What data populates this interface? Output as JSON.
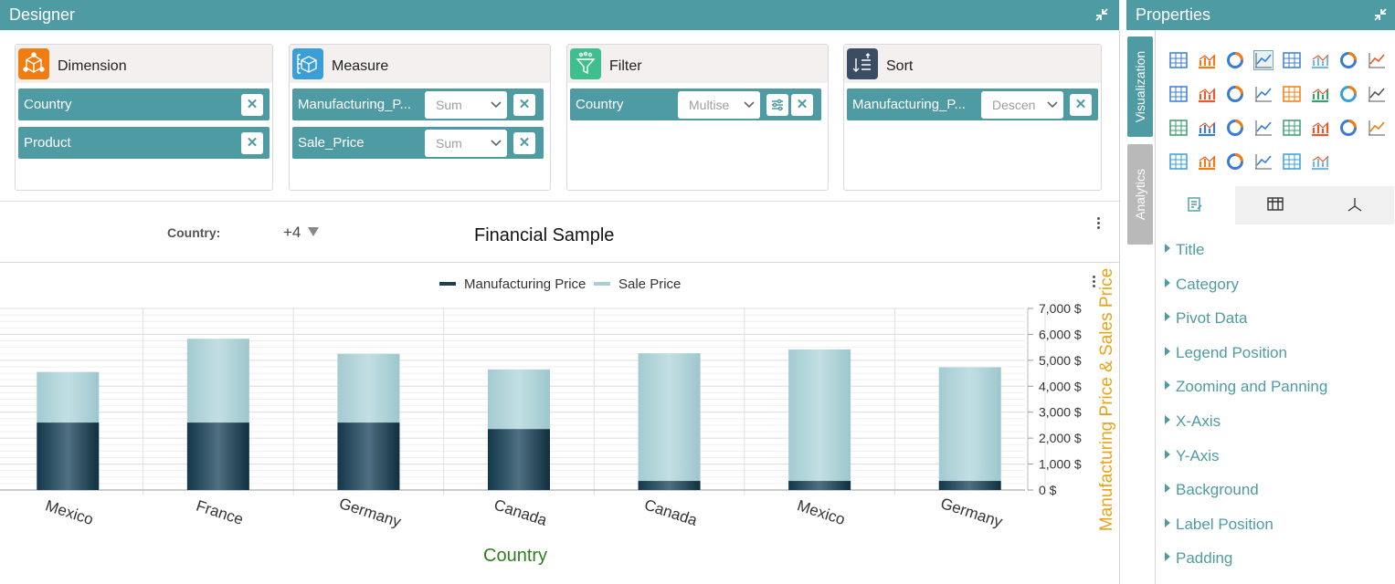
{
  "designer": {
    "title": "Designer"
  },
  "properties": {
    "title": "Properties",
    "tabs": [
      "Visualization",
      "Analytics"
    ],
    "items": [
      "Title",
      "Category",
      "Pivot Data",
      "Legend Position",
      "Zooming and Panning",
      "X-Axis",
      "Y-Axis",
      "Background",
      "Label Position",
      "Padding"
    ]
  },
  "cards": {
    "dimension": {
      "title": "Dimension",
      "chips": [
        "Country",
        "Product"
      ]
    },
    "measure": {
      "title": "Measure",
      "chips": [
        {
          "label": "Manufacturing_P...",
          "agg": "Sum"
        },
        {
          "label": "Sale_Price",
          "agg": "Sum"
        }
      ]
    },
    "filter": {
      "title": "Filter",
      "chips": [
        {
          "label": "Country",
          "select": "Multise"
        }
      ]
    },
    "sort": {
      "title": "Sort",
      "chips": [
        {
          "label": "Manufacturing_P...",
          "select": "Descen"
        }
      ]
    }
  },
  "filter_bar": {
    "label": "Country:",
    "more": "+4"
  },
  "chart_data": {
    "type": "bar",
    "stacked": true,
    "title": "Financial Sample",
    "xlabel": "Country",
    "ylabel": "Manufacturing Price & Sales Price",
    "categories": [
      "Mexico",
      "France",
      "Germany",
      "Canada",
      "Canada",
      "Mexico",
      "Germany"
    ],
    "series": [
      {
        "name": "Manufacturing Price",
        "values": [
          2600,
          2600,
          2600,
          2350,
          350,
          350,
          350
        ]
      },
      {
        "name": "Sale Price",
        "values": [
          1950,
          3230,
          2650,
          2300,
          4920,
          5070,
          4380
        ]
      }
    ],
    "ylim": [
      0,
      7000
    ],
    "yticks": [
      "0 $",
      "1,000 $",
      "2,000 $",
      "3,000 $",
      "4,000 $",
      "5,000 $",
      "6,000 $",
      "7,000 $"
    ],
    "legend_position": "top",
    "colors": {
      "Manufacturing Price": "#1e3f52",
      "Sale Price": "#a8cfd4"
    }
  },
  "colors": {
    "accent": "#4f9ba4",
    "ylabel": "#e8a317",
    "xlabel": "#2e7d1f"
  }
}
